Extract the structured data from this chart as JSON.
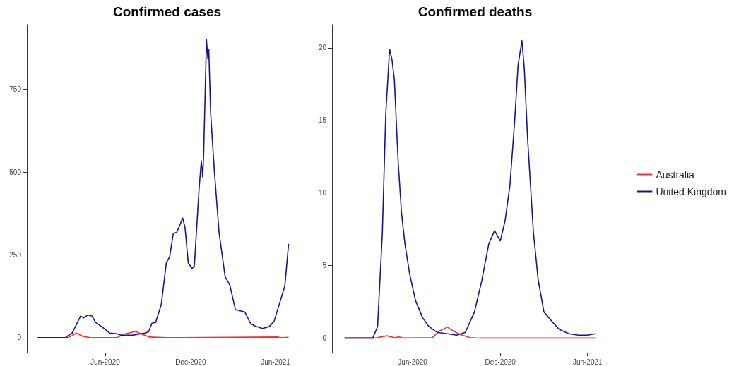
{
  "chart_data": [
    {
      "type": "line",
      "title": "Confirmed cases",
      "grid": false,
      "legend": false,
      "xlim": [
        "2019-12-16",
        "2021-07-24"
      ],
      "xticks": [
        {
          "value": "2020-06-01",
          "label": "Jun-2020"
        },
        {
          "value": "2020-12-01",
          "label": "Dec-2020"
        },
        {
          "value": "2021-06-01",
          "label": "Jun-2021"
        }
      ],
      "ylim": [
        -45,
        945
      ],
      "yticks": [
        0,
        250,
        500,
        750
      ],
      "series": [
        {
          "color": "#ff2a2a",
          "x": [
            "2020-01-08",
            "2020-03-12",
            "2020-03-22",
            "2020-03-31",
            "2020-04-14",
            "2020-05-01",
            "2020-06-26",
            "2020-07-11",
            "2020-08-05",
            "2020-08-18",
            "2020-09-04",
            "2020-10-10",
            "2021-06-06",
            "2021-06-14",
            "2021-06-29"
          ],
          "values": [
            0,
            0,
            6,
            14,
            4,
            0,
            0,
            11,
            19,
            11,
            2,
            0,
            2,
            0,
            1
          ]
        },
        {
          "color": "#16168c",
          "x": [
            "2020-01-08",
            "2020-03-07",
            "2020-03-22",
            "2020-04-09",
            "2020-04-16",
            "2020-04-25",
            "2020-05-04",
            "2020-05-11",
            "2020-05-26",
            "2020-06-11",
            "2020-06-26",
            "2020-07-06",
            "2020-07-31",
            "2020-08-25",
            "2020-09-02",
            "2020-09-09",
            "2020-09-17",
            "2020-09-29",
            "2020-10-10",
            "2020-10-17",
            "2020-10-25",
            "2020-11-01",
            "2020-11-06",
            "2020-11-14",
            "2020-11-19",
            "2020-11-26",
            "2020-12-04",
            "2020-12-09",
            "2020-12-19",
            "2020-12-24",
            "2020-12-27",
            "2020-12-29",
            "2021-01-04",
            "2021-01-07",
            "2021-01-09",
            "2021-01-13",
            "2021-01-21",
            "2021-01-31",
            "2021-02-13",
            "2021-02-23",
            "2021-03-07",
            "2021-03-27",
            "2021-04-09",
            "2021-04-19",
            "2021-05-04",
            "2021-05-19",
            "2021-05-29",
            "2021-06-08",
            "2021-06-21",
            "2021-06-29"
          ],
          "values": [
            0,
            0,
            14,
            65,
            60,
            69,
            65,
            47,
            32,
            14,
            12,
            7,
            8,
            14,
            18,
            44,
            46,
            99,
            226,
            244,
            315,
            318,
            333,
            361,
            333,
            226,
            209,
            216,
            446,
            534,
            485,
            555,
            899,
            842,
            870,
            676,
            502,
            318,
            184,
            159,
            85,
            78,
            42,
            35,
            28,
            34,
            50,
            96,
            156,
            283
          ]
        }
      ]
    },
    {
      "type": "line",
      "title": "Confirmed deaths",
      "grid": false,
      "legend": "right",
      "xlim": [
        "2019-12-16",
        "2021-07-20"
      ],
      "xticks": [
        {
          "value": "2020-06-01",
          "label": "Jun-2020"
        },
        {
          "value": "2020-12-01",
          "label": "Dec-2020"
        },
        {
          "value": "2021-06-01",
          "label": "Jun-2021"
        }
      ],
      "ylim": [
        -1,
        21.6
      ],
      "yticks": [
        0,
        5,
        10,
        15,
        20
      ],
      "series": [
        {
          "name": "Australia",
          "color": "#ff2a2a",
          "x": [
            "2020-01-11",
            "2020-03-15",
            "2020-04-08",
            "2020-04-24",
            "2020-05-04",
            "2020-05-14",
            "2020-07-12",
            "2020-07-27",
            "2020-08-13",
            "2020-08-25",
            "2020-09-09",
            "2020-09-29",
            "2020-10-19",
            "2021-06-17"
          ],
          "values": [
            0,
            0,
            0.16,
            0.03,
            0.08,
            0,
            0.03,
            0.5,
            0.76,
            0.49,
            0.24,
            0.03,
            0,
            0
          ]
        },
        {
          "name": "United Kingdom",
          "color": "#16168c",
          "x": [
            "2020-01-11",
            "2020-03-10",
            "2020-03-20",
            "2020-03-30",
            "2020-04-06",
            "2020-04-14",
            "2020-04-19",
            "2020-04-24",
            "2020-05-02",
            "2020-05-09",
            "2020-05-16",
            "2020-05-26",
            "2020-06-07",
            "2020-06-22",
            "2020-07-05",
            "2020-07-22",
            "2020-08-13",
            "2020-09-01",
            "2020-09-19",
            "2020-10-08",
            "2020-10-23",
            "2020-11-07",
            "2020-11-19",
            "2020-12-01",
            "2020-12-11",
            "2020-12-21",
            "2020-12-31",
            "2021-01-07",
            "2021-01-15",
            "2021-01-20",
            "2021-01-27",
            "2021-02-08",
            "2021-02-18",
            "2021-03-02",
            "2021-03-20",
            "2021-04-03",
            "2021-04-23",
            "2021-05-13",
            "2021-06-01",
            "2021-06-17"
          ],
          "values": [
            0,
            0,
            0.8,
            7.3,
            15.4,
            19.9,
            19.2,
            17.8,
            12.1,
            8.6,
            6.5,
            4.4,
            2.6,
            1.4,
            0.8,
            0.4,
            0.3,
            0.2,
            0.4,
            1.8,
            3.9,
            6.5,
            7.4,
            6.7,
            8.1,
            10.5,
            15.0,
            18.8,
            20.5,
            18.6,
            13.7,
            7.3,
            4.0,
            1.8,
            1.1,
            0.6,
            0.3,
            0.2,
            0.2,
            0.3
          ]
        }
      ]
    }
  ]
}
